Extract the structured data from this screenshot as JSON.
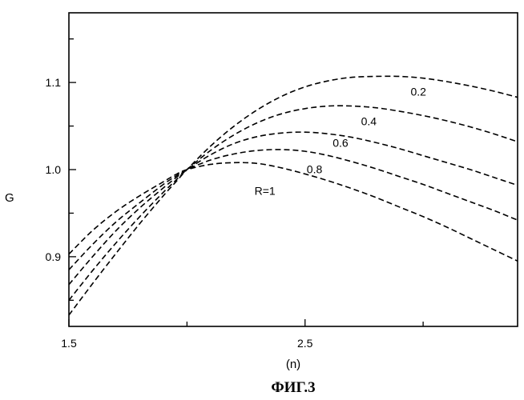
{
  "chart_data": {
    "type": "line",
    "title": "",
    "xlabel": "(n)",
    "ylabel": "G",
    "xlim": [
      1.5,
      3.4
    ],
    "ylim": [
      0.82,
      1.18
    ],
    "x_ticks": [
      1.5,
      2.5
    ],
    "x_tick_labels": [
      "1.5",
      "2.5"
    ],
    "y_ticks": [
      0.9,
      1.0,
      1.1
    ],
    "y_tick_labels": [
      "0.9",
      "1.0",
      "1.1"
    ],
    "grid": false,
    "series": [
      {
        "name": "0.2",
        "label": "0.2",
        "x": [
          1.5,
          1.6,
          1.7,
          1.8,
          1.9,
          1.95,
          2.0,
          2.1,
          2.2,
          2.3,
          2.4,
          2.5,
          2.6,
          2.7,
          2.8,
          2.9,
          3.0,
          3.1,
          3.2,
          3.3,
          3.4
        ],
        "y": [
          0.833,
          0.869,
          0.904,
          0.938,
          0.97,
          0.985,
          1.0,
          1.027,
          1.05,
          1.069,
          1.084,
          1.095,
          1.102,
          1.106,
          1.107,
          1.107,
          1.105,
          1.101,
          1.096,
          1.09,
          1.083
        ]
      },
      {
        "name": "0.4",
        "label": "0.4",
        "x": [
          1.5,
          1.6,
          1.7,
          1.8,
          1.9,
          1.95,
          2.0,
          2.1,
          2.2,
          2.3,
          2.4,
          2.5,
          2.6,
          2.7,
          2.8,
          2.9,
          3.0,
          3.1,
          3.2,
          3.3,
          3.4
        ],
        "y": [
          0.85,
          0.884,
          0.916,
          0.946,
          0.974,
          0.987,
          1.0,
          1.022,
          1.04,
          1.054,
          1.064,
          1.07,
          1.073,
          1.073,
          1.071,
          1.067,
          1.062,
          1.056,
          1.049,
          1.041,
          1.032
        ]
      },
      {
        "name": "0.6",
        "label": "0.6",
        "x": [
          1.5,
          1.6,
          1.7,
          1.8,
          1.9,
          1.95,
          2.0,
          2.1,
          2.2,
          2.3,
          2.4,
          2.5,
          2.6,
          2.7,
          2.8,
          2.9,
          3.0,
          3.1,
          3.2,
          3.3,
          3.4
        ],
        "y": [
          0.868,
          0.9,
          0.93,
          0.956,
          0.979,
          0.99,
          1.0,
          1.017,
          1.03,
          1.038,
          1.042,
          1.043,
          1.041,
          1.037,
          1.031,
          1.024,
          1.016,
          1.008,
          1.0,
          0.991,
          0.982
        ]
      },
      {
        "name": "0.8",
        "label": "0.8",
        "x": [
          1.5,
          1.6,
          1.7,
          1.8,
          1.9,
          1.95,
          2.0,
          2.1,
          2.2,
          2.3,
          2.4,
          2.5,
          2.6,
          2.7,
          2.8,
          2.9,
          3.0,
          3.1,
          3.2,
          3.3,
          3.4
        ],
        "y": [
          0.885,
          0.914,
          0.94,
          0.962,
          0.983,
          0.992,
          1.0,
          1.011,
          1.018,
          1.022,
          1.023,
          1.021,
          1.016,
          1.009,
          1.001,
          0.992,
          0.983,
          0.973,
          0.963,
          0.953,
          0.942
        ]
      },
      {
        "name": "R=1",
        "label": "R=1",
        "x": [
          1.5,
          1.6,
          1.7,
          1.8,
          1.9,
          1.95,
          2.0,
          2.1,
          2.2,
          2.3,
          2.4,
          2.5,
          2.6,
          2.7,
          2.8,
          2.9,
          3.0,
          3.1,
          3.2,
          3.3,
          3.4
        ],
        "y": [
          0.903,
          0.93,
          0.952,
          0.97,
          0.986,
          0.994,
          1.0,
          1.006,
          1.008,
          1.007,
          1.002,
          0.995,
          0.987,
          0.978,
          0.968,
          0.957,
          0.946,
          0.934,
          0.921,
          0.908,
          0.895
        ]
      }
    ],
    "curve_label_positions": [
      {
        "series": "0.2",
        "x": 2.98,
        "y": 1.085
      },
      {
        "series": "0.4",
        "x": 2.77,
        "y": 1.051
      },
      {
        "series": "0.6",
        "x": 2.65,
        "y": 1.026
      },
      {
        "series": "0.8",
        "x": 2.54,
        "y": 0.996
      },
      {
        "series": "R=1",
        "x": 2.33,
        "y": 0.971
      }
    ]
  },
  "figure_caption": "ФИГ.3"
}
